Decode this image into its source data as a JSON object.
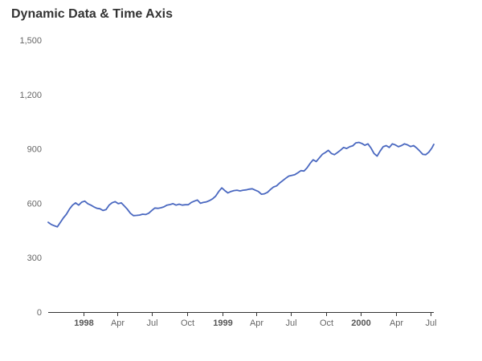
{
  "chart_data": {
    "type": "line",
    "title": "Dynamic Data & Time Axis",
    "xlabel": "",
    "ylabel": "",
    "x_range": [
      "1997-10-01",
      "2000-07-10"
    ],
    "ylim": [
      0,
      1500
    ],
    "y_ticks": [
      {
        "value": 0,
        "label": "0"
      },
      {
        "value": 300,
        "label": "300"
      },
      {
        "value": 600,
        "label": "600"
      },
      {
        "value": 900,
        "label": "900"
      },
      {
        "value": 1200,
        "label": "1,200"
      },
      {
        "value": 1500,
        "label": "1,500"
      }
    ],
    "x_ticks": [
      {
        "date": "1998-01-01",
        "label": "1998",
        "bold": true
      },
      {
        "date": "1998-04-01",
        "label": "Apr",
        "bold": false
      },
      {
        "date": "1998-07-01",
        "label": "Jul",
        "bold": false
      },
      {
        "date": "1998-10-01",
        "label": "Oct",
        "bold": false
      },
      {
        "date": "1999-01-01",
        "label": "1999",
        "bold": true
      },
      {
        "date": "1999-04-01",
        "label": "Apr",
        "bold": false
      },
      {
        "date": "1999-07-01",
        "label": "Jul",
        "bold": false
      },
      {
        "date": "1999-10-01",
        "label": "Oct",
        "bold": false
      },
      {
        "date": "2000-01-01",
        "label": "2000",
        "bold": true
      },
      {
        "date": "2000-04-01",
        "label": "Apr",
        "bold": false
      },
      {
        "date": "2000-07-01",
        "label": "Jul",
        "bold": false
      }
    ],
    "grid": false,
    "legend": "none",
    "series": [
      {
        "color": "#4a68c0",
        "points": [
          [
            "1997-10-01",
            495
          ],
          [
            "1997-10-09",
            483
          ],
          [
            "1997-10-17",
            476
          ],
          [
            "1997-10-25",
            470
          ],
          [
            "1997-11-02",
            495
          ],
          [
            "1997-11-10",
            520
          ],
          [
            "1997-11-18",
            540
          ],
          [
            "1997-11-26",
            568
          ],
          [
            "1997-12-04",
            590
          ],
          [
            "1997-12-12",
            602
          ],
          [
            "1997-12-20",
            590
          ],
          [
            "1997-12-28",
            606
          ],
          [
            "1998-01-05",
            612
          ],
          [
            "1998-01-13",
            598
          ],
          [
            "1998-01-21",
            590
          ],
          [
            "1998-01-29",
            580
          ],
          [
            "1998-02-06",
            572
          ],
          [
            "1998-02-14",
            570
          ],
          [
            "1998-02-22",
            560
          ],
          [
            "1998-03-02",
            565
          ],
          [
            "1998-03-10",
            590
          ],
          [
            "1998-03-18",
            603
          ],
          [
            "1998-03-26",
            609
          ],
          [
            "1998-04-03",
            598
          ],
          [
            "1998-04-11",
            602
          ],
          [
            "1998-04-19",
            585
          ],
          [
            "1998-04-27",
            567
          ],
          [
            "1998-05-05",
            545
          ],
          [
            "1998-05-13",
            532
          ],
          [
            "1998-05-21",
            533
          ],
          [
            "1998-05-29",
            535
          ],
          [
            "1998-06-06",
            540
          ],
          [
            "1998-06-14",
            538
          ],
          [
            "1998-06-22",
            545
          ],
          [
            "1998-06-30",
            560
          ],
          [
            "1998-07-08",
            574
          ],
          [
            "1998-07-16",
            572
          ],
          [
            "1998-07-24",
            575
          ],
          [
            "1998-08-01",
            580
          ],
          [
            "1998-08-09",
            590
          ],
          [
            "1998-08-17",
            593
          ],
          [
            "1998-08-25",
            598
          ],
          [
            "1998-09-02",
            590
          ],
          [
            "1998-09-10",
            595
          ],
          [
            "1998-09-18",
            590
          ],
          [
            "1998-09-26",
            592
          ],
          [
            "1998-10-04",
            592
          ],
          [
            "1998-10-12",
            605
          ],
          [
            "1998-10-20",
            612
          ],
          [
            "1998-10-28",
            618
          ],
          [
            "1998-11-05",
            600
          ],
          [
            "1998-11-13",
            605
          ],
          [
            "1998-11-21",
            608
          ],
          [
            "1998-11-29",
            615
          ],
          [
            "1998-12-07",
            625
          ],
          [
            "1998-12-15",
            640
          ],
          [
            "1998-12-23",
            665
          ],
          [
            "1998-12-31",
            685
          ],
          [
            "1999-01-08",
            670
          ],
          [
            "1999-01-16",
            657
          ],
          [
            "1999-01-24",
            665
          ],
          [
            "1999-02-01",
            670
          ],
          [
            "1999-02-09",
            672
          ],
          [
            "1999-02-17",
            668
          ],
          [
            "1999-02-25",
            672
          ],
          [
            "1999-03-05",
            674
          ],
          [
            "1999-03-13",
            678
          ],
          [
            "1999-03-21",
            680
          ],
          [
            "1999-03-29",
            672
          ],
          [
            "1999-04-06",
            665
          ],
          [
            "1999-04-14",
            650
          ],
          [
            "1999-04-22",
            652
          ],
          [
            "1999-04-30",
            660
          ],
          [
            "1999-05-08",
            676
          ],
          [
            "1999-05-16",
            690
          ],
          [
            "1999-05-24",
            696
          ],
          [
            "1999-06-01",
            712
          ],
          [
            "1999-06-09",
            725
          ],
          [
            "1999-06-17",
            738
          ],
          [
            "1999-06-25",
            750
          ],
          [
            "1999-07-03",
            754
          ],
          [
            "1999-07-11",
            758
          ],
          [
            "1999-07-19",
            768
          ],
          [
            "1999-07-27",
            780
          ],
          [
            "1999-08-04",
            778
          ],
          [
            "1999-08-12",
            795
          ],
          [
            "1999-08-20",
            820
          ],
          [
            "1999-08-28",
            840
          ],
          [
            "1999-09-05",
            830
          ],
          [
            "1999-09-13",
            850
          ],
          [
            "1999-09-21",
            870
          ],
          [
            "1999-09-29",
            880
          ],
          [
            "1999-10-07",
            892
          ],
          [
            "1999-10-15",
            875
          ],
          [
            "1999-10-23",
            868
          ],
          [
            "1999-10-31",
            880
          ],
          [
            "1999-11-08",
            893
          ],
          [
            "1999-11-16",
            908
          ],
          [
            "1999-11-24",
            902
          ],
          [
            "1999-12-02",
            912
          ],
          [
            "1999-12-10",
            917
          ],
          [
            "1999-12-18",
            933
          ],
          [
            "1999-12-26",
            936
          ],
          [
            "2000-01-03",
            930
          ],
          [
            "2000-01-11",
            920
          ],
          [
            "2000-01-19",
            928
          ],
          [
            "2000-01-27",
            905
          ],
          [
            "2000-02-04",
            875
          ],
          [
            "2000-02-12",
            860
          ],
          [
            "2000-02-20",
            888
          ],
          [
            "2000-02-28",
            912
          ],
          [
            "2000-03-07",
            918
          ],
          [
            "2000-03-15",
            908
          ],
          [
            "2000-03-23",
            928
          ],
          [
            "2000-03-31",
            922
          ],
          [
            "2000-04-08",
            912
          ],
          [
            "2000-04-16",
            918
          ],
          [
            "2000-04-24",
            928
          ],
          [
            "2000-05-02",
            922
          ],
          [
            "2000-05-10",
            913
          ],
          [
            "2000-05-18",
            918
          ],
          [
            "2000-05-26",
            905
          ],
          [
            "2000-06-03",
            888
          ],
          [
            "2000-06-11",
            870
          ],
          [
            "2000-06-19",
            868
          ],
          [
            "2000-06-27",
            882
          ],
          [
            "2000-07-05",
            905
          ],
          [
            "2000-07-10",
            925
          ]
        ]
      }
    ]
  }
}
